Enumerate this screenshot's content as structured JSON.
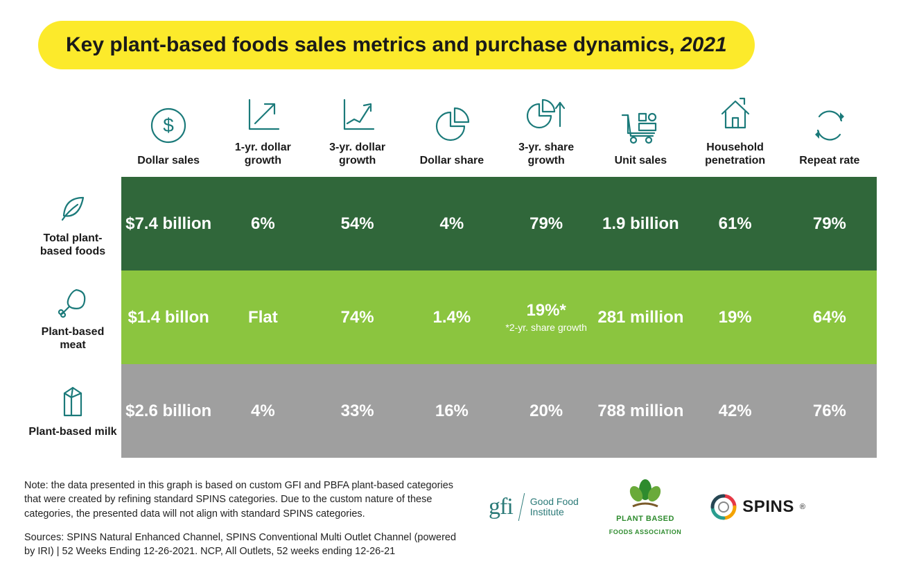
{
  "title_main": "Key plant-based foods sales metrics and purchase dynamics, ",
  "title_year": "2021",
  "icon_color": "#1b7a7a",
  "header_text_color": "#1a1a1a",
  "columns": [
    {
      "label": "Dollar sales",
      "icon": "dollar"
    },
    {
      "label": "1-yr. dollar growth",
      "icon": "arrow-box"
    },
    {
      "label": "3-yr. dollar growth",
      "icon": "chart-up"
    },
    {
      "label": "Dollar share",
      "icon": "pie"
    },
    {
      "label": "3-yr. share growth",
      "icon": "pie-arrow"
    },
    {
      "label": "Unit sales",
      "icon": "cart"
    },
    {
      "label": "Household penetration",
      "icon": "house"
    },
    {
      "label": "Repeat rate",
      "icon": "cycle"
    }
  ],
  "rows": [
    {
      "label": "Total plant-based foods",
      "icon": "leaf",
      "bg": "#30673a",
      "cells": [
        {
          "val": "$7.4 billion"
        },
        {
          "val": "6%"
        },
        {
          "val": "54%"
        },
        {
          "val": "4%"
        },
        {
          "val": "79%"
        },
        {
          "val": "1.9 billion"
        },
        {
          "val": "61%"
        },
        {
          "val": "79%"
        }
      ]
    },
    {
      "label": "Plant-based meat",
      "icon": "drumstick",
      "bg": "#8bc53f",
      "cells": [
        {
          "val": "$1.4 billon"
        },
        {
          "val": "Flat"
        },
        {
          "val": "74%"
        },
        {
          "val": "1.4%"
        },
        {
          "val": "19%*",
          "sub": "*2-yr. share growth"
        },
        {
          "val": "281 million"
        },
        {
          "val": "19%"
        },
        {
          "val": "64%"
        }
      ]
    },
    {
      "label": "Plant-based milk",
      "icon": "carton",
      "bg": "#9f9f9f",
      "cells": [
        {
          "val": "$2.6 billion"
        },
        {
          "val": "4%"
        },
        {
          "val": "33%"
        },
        {
          "val": "16%"
        },
        {
          "val": "20%"
        },
        {
          "val": "788 million"
        },
        {
          "val": "42%"
        },
        {
          "val": "76%"
        }
      ]
    }
  ],
  "note": "Note: the data presented in this graph is based on custom GFI and PBFA plant-based categories that were created by refining standard SPINS categories. Due to the custom nature of these categories, the presented data will not align with standard SPINS categories.",
  "sources": "Sources: SPINS Natural Enhanced Channel, SPINS Conventional Multi Outlet Channel (powered by IRI) | 52 Weeks Ending 12-26-2021. NCP, All Outlets, 52 weeks ending 12-26-21",
  "logos": {
    "gfi_abbr": "gfi",
    "gfi_full": "Good Food Institute",
    "pbfa_top": "PLANT BASED",
    "pbfa_bottom": "FOODS ASSOCIATION",
    "spins": "SPINS"
  }
}
